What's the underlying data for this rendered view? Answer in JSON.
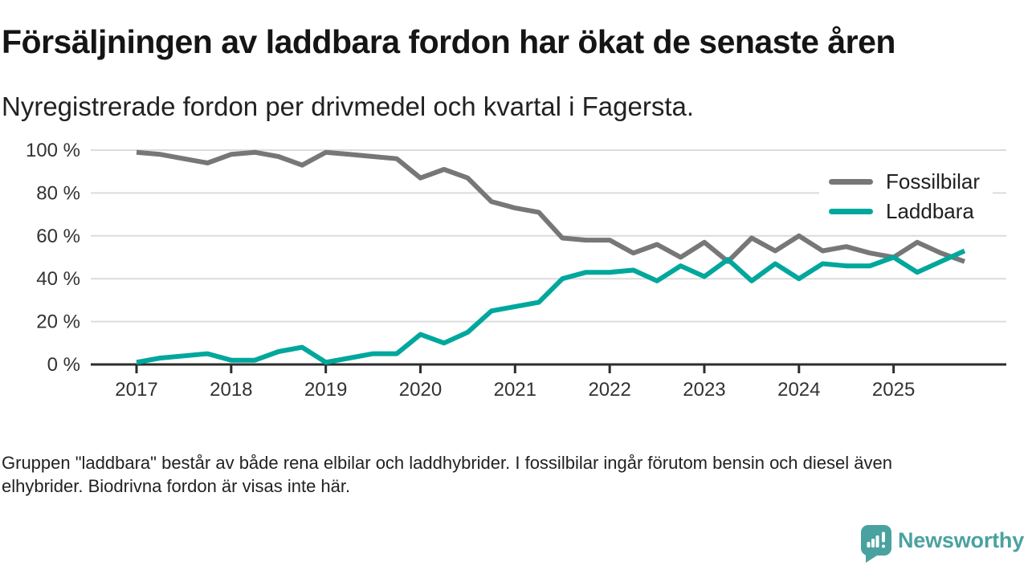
{
  "header": {
    "title": "Försäljningen av laddbara fordon har ökat de senaste åren",
    "subtitle": "Nyregistrerade fordon per drivmedel och kvartal i Fagersta."
  },
  "legend": [
    {
      "label": "Fossilbilar",
      "color": "#77777a"
    },
    {
      "label": "Laddbara",
      "color": "#00a79c"
    }
  ],
  "footnote": {
    "lines": [
      "Gruppen \"laddbara\" består av både rena elbilar och laddhybrider. I fossilbilar ingår förutom bensin och diesel även",
      "elhybrider. Biodrivna fordon är visas inte här."
    ]
  },
  "branding": {
    "logo_text": "Newsworthy",
    "logo_color": "#4aa2a0",
    "logo_icon": "newsworthy-speech-bubble-bar-chart-icon"
  },
  "chart_data": {
    "type": "line",
    "title": "Nyregistrerade fordon per drivmedel och kvartal i Fagersta",
    "x_unit": "quarter",
    "categories": [
      "2017 Q1",
      "2017 Q2",
      "2017 Q3",
      "2017 Q4",
      "2018 Q1",
      "2018 Q2",
      "2018 Q3",
      "2018 Q4",
      "2019 Q1",
      "2019 Q2",
      "2019 Q3",
      "2019 Q4",
      "2020 Q1",
      "2020 Q2",
      "2020 Q3",
      "2020 Q4",
      "2021 Q1",
      "2021 Q2",
      "2021 Q3",
      "2021 Q4",
      "2022 Q1",
      "2022 Q2",
      "2022 Q3",
      "2022 Q4",
      "2023 Q1",
      "2023 Q2",
      "2023 Q3",
      "2023 Q4",
      "2024 Q1",
      "2024 Q2",
      "2024 Q3",
      "2024 Q4",
      "2025 Q1",
      "2025 Q2",
      "2025 Q3",
      "2025 Q4"
    ],
    "x_tick_labels": [
      "2017",
      "2018",
      "2019",
      "2020",
      "2021",
      "2022",
      "2023",
      "2024",
      "2025"
    ],
    "y_ticks": [
      0,
      20,
      40,
      60,
      80,
      100
    ],
    "y_tick_labels": [
      "0 %",
      "20 %",
      "40 %",
      "60 %",
      "80 %",
      "100 %"
    ],
    "ylim": [
      0,
      100
    ],
    "y_unit": "%",
    "grid": "horizontal",
    "legend_position": "top-right",
    "series": [
      {
        "name": "Fossilbilar",
        "color": "#77777a",
        "values": [
          99,
          98,
          96,
          94,
          98,
          99,
          97,
          93,
          99,
          98,
          97,
          96,
          87,
          91,
          87,
          76,
          73,
          71,
          59,
          58,
          58,
          52,
          56,
          50,
          57,
          48,
          59,
          53,
          60,
          53,
          55,
          52,
          50,
          57,
          52,
          48
        ]
      },
      {
        "name": "Laddbara",
        "color": "#00a79c",
        "values": [
          1,
          3,
          4,
          5,
          2,
          2,
          6,
          8,
          1,
          3,
          5,
          5,
          14,
          10,
          15,
          25,
          27,
          29,
          40,
          43,
          43,
          44,
          39,
          46,
          41,
          49,
          39,
          47,
          40,
          47,
          46,
          46,
          50,
          43,
          48,
          53
        ]
      }
    ]
  }
}
